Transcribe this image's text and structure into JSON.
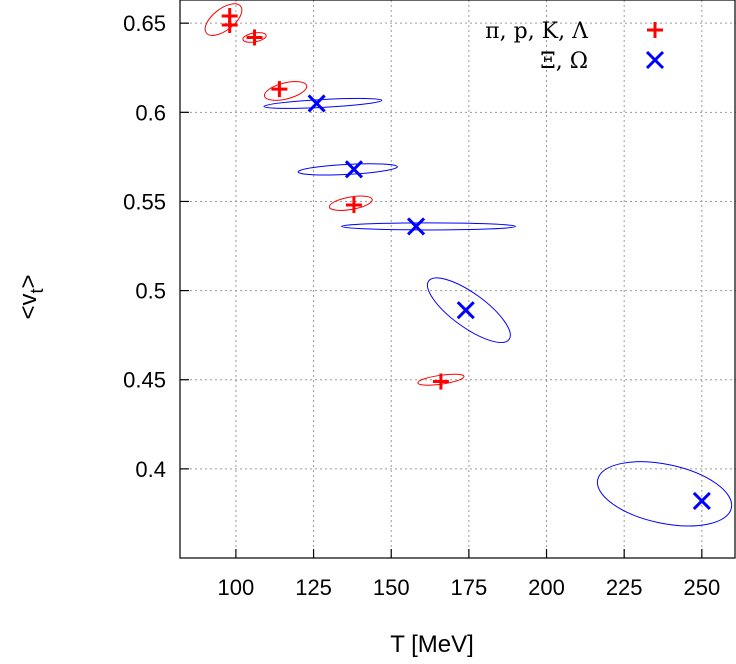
{
  "chart_data": {
    "type": "scatter",
    "xlabel": "T [MeV]",
    "ylabel": "<v",
    "ylabel_sub": "t",
    "ylabel_end": ">",
    "xlim": [
      82,
      261
    ],
    "ylim": [
      0.35,
      0.663
    ],
    "x_ticks": [
      100,
      125,
      150,
      175,
      200,
      225,
      250
    ],
    "y_ticks": [
      0.4,
      0.45,
      0.5,
      0.55,
      0.6,
      0.65
    ],
    "y_tick_labels": [
      "0.4",
      "0.45",
      "0.5",
      "0.55",
      "0.6",
      "0.65"
    ],
    "grid": true,
    "legend_position": "top-right",
    "series": [
      {
        "name": "π, p, K, Λ",
        "color": "#ff0000",
        "marker": "plus",
        "points": [
          {
            "x": 98,
            "y": 0.654
          },
          {
            "x": 98,
            "y": 0.649
          },
          {
            "x": 106,
            "y": 0.642
          },
          {
            "x": 114,
            "y": 0.613
          },
          {
            "x": 138,
            "y": 0.548
          },
          {
            "x": 166,
            "y": 0.449
          }
        ],
        "ellipses": [
          {
            "cx": 96,
            "cy": 0.652,
            "rx": 7,
            "ry": 0.006,
            "angle": -38
          },
          {
            "cx": 106,
            "cy": 0.642,
            "rx": 3.8,
            "ry": 0.0025,
            "angle": -10
          },
          {
            "cx": 116,
            "cy": 0.612,
            "rx": 7,
            "ry": 0.0045,
            "angle": -14
          },
          {
            "cx": 137,
            "cy": 0.549,
            "rx": 7,
            "ry": 0.0035,
            "angle": -10
          },
          {
            "cx": 166,
            "cy": 0.45,
            "rx": 7.5,
            "ry": 0.0025,
            "angle": -8
          }
        ]
      },
      {
        "name": "Ξ, Ω",
        "color": "#0000ff",
        "marker": "cross",
        "points": [
          {
            "x": 126,
            "y": 0.605
          },
          {
            "x": 138,
            "y": 0.568
          },
          {
            "x": 158,
            "y": 0.536
          },
          {
            "x": 174,
            "y": 0.489
          },
          {
            "x": 250,
            "y": 0.382
          }
        ],
        "ellipses": [
          {
            "cx": 128,
            "cy": 0.605,
            "rx": 19,
            "ry": 0.0022,
            "angle": -3
          },
          {
            "cx": 136,
            "cy": 0.568,
            "rx": 16,
            "ry": 0.0028,
            "angle": -3
          },
          {
            "cx": 162,
            "cy": 0.536,
            "rx": 28,
            "ry": 0.002,
            "angle": 0
          },
          {
            "cx": 175,
            "cy": 0.489,
            "rx": 16,
            "ry": 0.0095,
            "angle": 36
          },
          {
            "cx": 238,
            "cy": 0.386,
            "rx": 22,
            "ry": 0.0165,
            "angle": 12
          }
        ]
      }
    ]
  }
}
